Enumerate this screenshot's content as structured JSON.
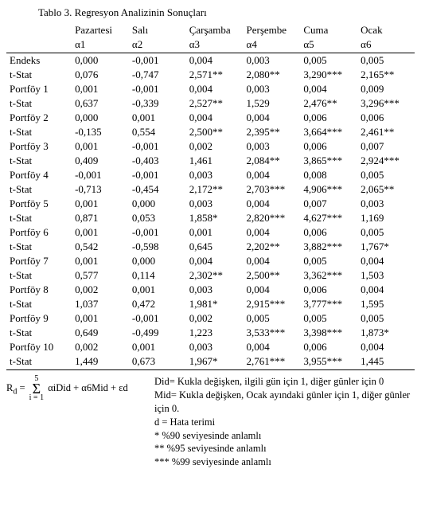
{
  "title": "Tablo 3. Regresyon Analizinin Sonuçları",
  "columns": {
    "names": [
      "Pazartesi",
      "Salı",
      "Çarşamba",
      "Perşembe",
      "Cuma",
      "Ocak"
    ],
    "alphas": [
      "α1",
      "α2",
      "α3",
      "α4",
      "α5",
      "α6"
    ]
  },
  "rows": [
    {
      "label": "Endeks",
      "v": [
        "0,000",
        "-0,001",
        "0,004",
        "0,003",
        "0,005",
        "0,005"
      ]
    },
    {
      "label": "t-Stat",
      "v": [
        "0,076",
        "-0,747",
        "2,571**",
        "2,080**",
        "3,290***",
        "2,165**"
      ]
    },
    {
      "label": "Portföy 1",
      "v": [
        "0,001",
        "-0,001",
        "0,004",
        "0,003",
        "0,004",
        "0,009"
      ]
    },
    {
      "label": "t-Stat",
      "v": [
        "0,637",
        "-0,339",
        "2,527**",
        "1,529",
        "2,476**",
        "3,296***"
      ]
    },
    {
      "label": "Portföy 2",
      "v": [
        "0,000",
        "0,001",
        "0,004",
        "0,004",
        "0,006",
        "0,006"
      ]
    },
    {
      "label": "t-Stat",
      "v": [
        "-0,135",
        "0,554",
        "2,500**",
        "2,395**",
        "3,664***",
        "2,461**"
      ]
    },
    {
      "label": "Portföy 3",
      "v": [
        "0,001",
        "-0,001",
        "0,002",
        "0,003",
        "0,006",
        "0,007"
      ]
    },
    {
      "label": "t-Stat",
      "v": [
        "0,409",
        "-0,403",
        "1,461",
        "2,084**",
        "3,865***",
        "2,924***"
      ]
    },
    {
      "label": "Portföy 4",
      "v": [
        "-0,001",
        "-0,001",
        "0,003",
        "0,004",
        "0,008",
        "0,005"
      ]
    },
    {
      "label": "t-Stat",
      "v": [
        "-0,713",
        "-0,454",
        "2,172**",
        "2,703***",
        "4,906***",
        "2,065**"
      ]
    },
    {
      "label": "Portföy 5",
      "v": [
        "0,001",
        "0,000",
        "0,003",
        "0,004",
        "0,007",
        "0,003"
      ]
    },
    {
      "label": "t-Stat",
      "v": [
        "0,871",
        "0,053",
        "1,858*",
        "2,820***",
        "4,627***",
        "1,169"
      ]
    },
    {
      "label": "Portföy 6",
      "v": [
        "0,001",
        "-0,001",
        "0,001",
        "0,004",
        "0,006",
        "0,005"
      ]
    },
    {
      "label": "t-Stat",
      "v": [
        "0,542",
        "-0,598",
        "0,645",
        "2,202**",
        "3,882***",
        "1,767*"
      ]
    },
    {
      "label": "Portföy 7",
      "v": [
        "0,001",
        "0,000",
        "0,004",
        "0,004",
        "0,005",
        "0,004"
      ]
    },
    {
      "label": "t-Stat",
      "v": [
        "0,577",
        "0,114",
        "2,302**",
        "2,500**",
        "3,362***",
        "1,503"
      ]
    },
    {
      "label": "Portföy 8",
      "v": [
        "0,002",
        "0,001",
        "0,003",
        "0,004",
        "0,006",
        "0,004"
      ]
    },
    {
      "label": "t-Stat",
      "v": [
        "1,037",
        "0,472",
        "1,981*",
        "2,915***",
        "3,777***",
        "1,595"
      ]
    },
    {
      "label": "Portföy 9",
      "v": [
        "0,001",
        "-0,001",
        "0,002",
        "0,005",
        "0,005",
        "0,005"
      ]
    },
    {
      "label": "t-Stat",
      "v": [
        "0,649",
        "-0,499",
        "1,223",
        "3,533***",
        "3,398***",
        "1,873*"
      ]
    },
    {
      "label": "Portföy 10",
      "v": [
        "0,002",
        "0,001",
        "0,003",
        "0,004",
        "0,006",
        "0,004"
      ]
    },
    {
      "label": "t-Stat",
      "v": [
        "1,449",
        "0,673",
        "1,967*",
        "2,761***",
        "3,955***",
        "1,445"
      ]
    }
  ],
  "formula": {
    "lhs": "R",
    "lhs_sub": "d",
    "eq": " = ",
    "sum_top": "5",
    "sum_bot": "i = 1",
    "rhs": "αiDid + α6Mid + εd"
  },
  "notes": [
    "Did= Kukla değişken, ilgili gün için 1, diğer günler için 0",
    "Mid= Kukla değişken, Ocak ayındaki günler için 1, diğer günler için 0.",
    "d = Hata terimi",
    "*     %90 seviyesinde anlamlı",
    "**   %95 seviyesinde anlamlı",
    "*** %99 seviyesinde anlamlı"
  ]
}
